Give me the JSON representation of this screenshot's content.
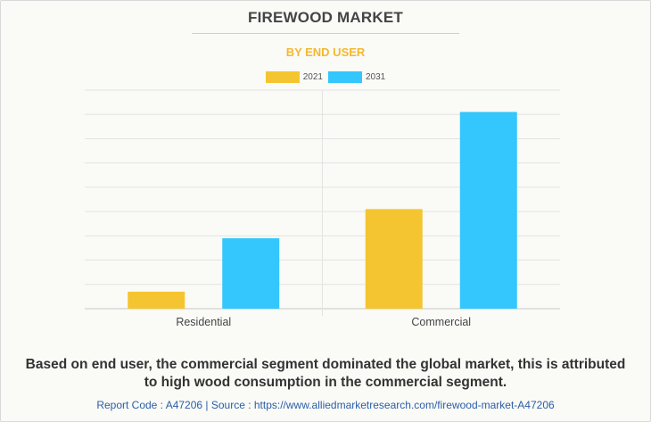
{
  "header": {
    "title": "FIREWOOD MARKET",
    "subtitle": "BY END USER"
  },
  "colors": {
    "series_2021": "#f4c531",
    "series_2031": "#33c7fd",
    "subtitle": "#f5b82e",
    "footer": "#2b5ea7"
  },
  "chart_data": {
    "type": "bar",
    "title": "FIREWOOD MARKET",
    "subtitle": "BY END USER",
    "categories": [
      "Residential",
      "Commercial"
    ],
    "series": [
      {
        "name": "2021",
        "values": [
          7,
          41
        ]
      },
      {
        "name": "2031",
        "values": [
          29,
          81
        ]
      }
    ],
    "ylim": [
      0,
      90
    ],
    "grid": true,
    "y_tick_labels_shown": false,
    "legend_position": "top-center"
  },
  "caption": {
    "line1": "Based on end user, the commercial segment dominated the global market, this is attributed",
    "line2": "to high wood consumption in the commercial segment."
  },
  "footer": {
    "text": "Report Code : A47206  |  Source : https://www.alliedmarketresearch.com/firewood-market-A47206"
  }
}
